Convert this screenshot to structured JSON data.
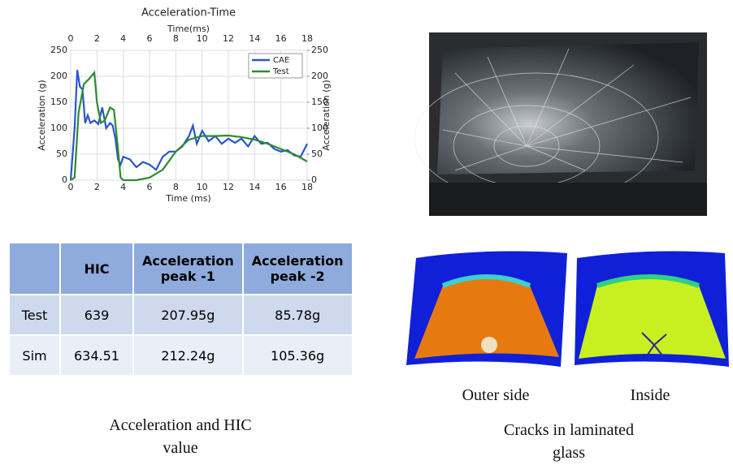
{
  "chart_data": {
    "type": "line",
    "title": "Acceleration-Time",
    "xlabel": "Time (ms)",
    "x2label": "Time(ms)",
    "ylabel": "Acceleration (g)",
    "y2label": "Acceleration (g)",
    "xlim": [
      0,
      18
    ],
    "xticks": [
      0,
      2,
      4,
      6,
      8,
      10,
      12,
      14,
      16,
      18
    ],
    "ylim": [
      0,
      250
    ],
    "yticks": [
      0,
      50,
      100,
      150,
      200,
      250
    ],
    "y2lim": [
      0,
      250
    ],
    "y2ticks": [
      0,
      50,
      100,
      150,
      200,
      250
    ],
    "grid": true,
    "legend": "upper right",
    "series": [
      {
        "name": "CAE",
        "color": "#2a55d0",
        "x": [
          0,
          0.3,
          0.5,
          0.7,
          0.9,
          1.1,
          1.3,
          1.5,
          1.8,
          2.1,
          2.4,
          2.7,
          3.0,
          3.2,
          3.4,
          3.6,
          3.8,
          4.0,
          4.5,
          5,
          5.5,
          6,
          6.5,
          7,
          7.5,
          8,
          8.5,
          9,
          9.3,
          9.6,
          10,
          10.5,
          11,
          11.5,
          12,
          12.5,
          13,
          13.5,
          14,
          14.5,
          15,
          15.5,
          16,
          16.5,
          17,
          17.5,
          18
        ],
        "values": [
          0,
          100,
          212,
          180,
          175,
          110,
          125,
          110,
          115,
          108,
          140,
          100,
          110,
          105,
          80,
          40,
          30,
          45,
          40,
          25,
          35,
          30,
          20,
          45,
          55,
          55,
          65,
          85,
          105,
          70,
          95,
          75,
          85,
          70,
          80,
          72,
          80,
          65,
          85,
          70,
          72,
          60,
          55,
          58,
          48,
          45,
          70
        ]
      },
      {
        "name": "Test",
        "color": "#2e8b2e",
        "x": [
          0,
          0.3,
          0.6,
          1.0,
          1.4,
          1.8,
          2.0,
          2.3,
          2.6,
          3.0,
          3.3,
          3.6,
          3.8,
          4.0,
          5,
          6,
          7,
          8,
          9,
          10,
          11,
          12,
          13,
          14,
          15,
          16,
          17,
          18
        ],
        "values": [
          0,
          5,
          130,
          185,
          195,
          207,
          150,
          110,
          115,
          140,
          135,
          60,
          5,
          0,
          0,
          5,
          20,
          55,
          78,
          85,
          85,
          86,
          83,
          78,
          70,
          60,
          50,
          36
        ]
      }
    ]
  },
  "table": {
    "columns": [
      "HIC",
      "Acceleration peak -1",
      "Acceleration peak -2"
    ],
    "rows": [
      [
        "Test",
        "639",
        "207.95g",
        "85.78g"
      ],
      [
        "Sim",
        "634.51",
        "212.24g",
        "105.36g"
      ]
    ]
  },
  "captions": {
    "left": [
      "Acceleration and HIC",
      "value"
    ],
    "right": [
      "Cracks in laminated",
      "glass"
    ],
    "outer": "Outer side",
    "inside": "Inside"
  }
}
